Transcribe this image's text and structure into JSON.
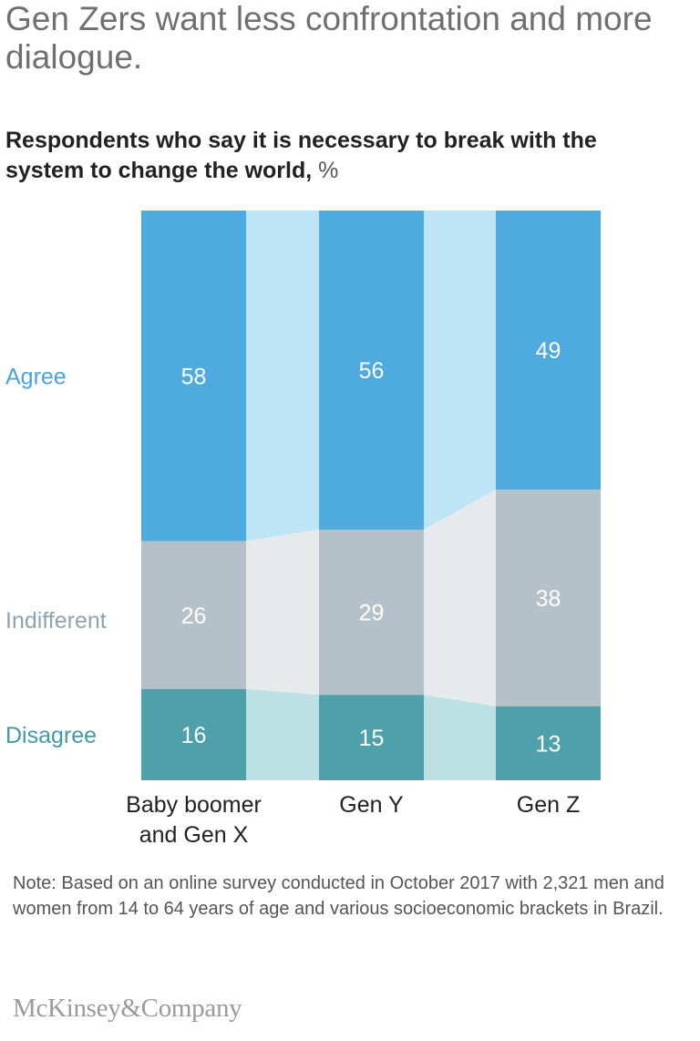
{
  "title": "Gen Zers want less confrontation and more dialogue.",
  "subtitle": "Respondents who say it is necessary to break with the system to change the world,",
  "subtitle_unit": "%",
  "note": "Note: Based on an online survey conducted in October 2017 with 2,321 men and women from 14 to 64 years of age and various socioeconomic brackets in Brazil.",
  "logo": "McKinsey&Company",
  "colors": {
    "agree": "#4faae0",
    "agree_light": "#bde5f6",
    "indifferent": "#b5c1c9",
    "indifferent_light": "#e6eaec",
    "disagree": "#4ea1ab",
    "disagree_light": "#bde0e2",
    "agree_label": "#4aa3dc",
    "indifferent_label": "#8ea4b0",
    "disagree_label": "#3f9ba6"
  },
  "chart_data": {
    "type": "bar",
    "stacked": true,
    "percent": true,
    "categories": [
      "Baby boomer\nand Gen X",
      "Gen Y",
      "Gen Z"
    ],
    "series": [
      {
        "name": "Agree",
        "values": [
          58,
          56,
          49
        ]
      },
      {
        "name": "Indifferent",
        "values": [
          26,
          29,
          38
        ]
      },
      {
        "name": "Disagree",
        "values": [
          16,
          15,
          13
        ]
      }
    ],
    "ylim": [
      0,
      100
    ]
  }
}
